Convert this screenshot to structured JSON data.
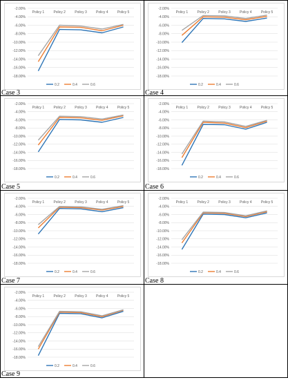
{
  "colors": {
    "series_0": "#2e75b6",
    "series_1": "#ed7d31",
    "series_2": "#a5a5a5",
    "grid": "#d9d9d9",
    "frame": "#d9d9d9",
    "text": "#595959"
  },
  "chart_data": [
    {
      "type": "line",
      "case_label": "Case 3",
      "categories": [
        "Policy 1",
        "Policy 2",
        "Policy 3",
        "Policy 4",
        "Policy 5"
      ],
      "y_ticks": [
        "-2.00%",
        "-4.00%",
        "-6.00%",
        "-8.00%",
        "-10.00%",
        "-12.00%",
        "-14.00%",
        "-16.00%",
        "-18.00%"
      ],
      "ylim": [
        -18,
        -2
      ],
      "x_axis_position": "top",
      "grid": true,
      "legend": "bottom",
      "series": [
        {
          "name": "0.2",
          "values": [
            -16.8,
            -7.0,
            -7.1,
            -7.8,
            -6.4
          ]
        },
        {
          "name": "0.4",
          "values": [
            -14.6,
            -6.4,
            -6.5,
            -7.3,
            -6.0
          ]
        },
        {
          "name": "0.6",
          "values": [
            -13.2,
            -6.0,
            -6.2,
            -6.9,
            -5.8
          ]
        }
      ]
    },
    {
      "type": "line",
      "case_label": "Case 4",
      "categories": [
        "Policy 1",
        "Policy 2",
        "Policy 3",
        "Policy 4",
        "Policy 5"
      ],
      "y_ticks": [
        "-2.00%",
        "-4.00%",
        "-6.00%",
        "-8.00%",
        "-10.00%",
        "-12.00%",
        "-14.00%",
        "-16.00%",
        "-18.00%"
      ],
      "ylim": [
        -18,
        -2
      ],
      "x_axis_position": "top",
      "grid": true,
      "legend": "bottom",
      "series": [
        {
          "name": "0.2",
          "values": [
            -10.1,
            -4.4,
            -4.5,
            -5.1,
            -4.3
          ]
        },
        {
          "name": "0.4",
          "values": [
            -8.4,
            -4.0,
            -4.1,
            -4.7,
            -3.9
          ]
        },
        {
          "name": "0.6",
          "values": [
            -7.2,
            -3.7,
            -3.8,
            -4.4,
            -3.6
          ]
        }
      ]
    },
    {
      "type": "line",
      "case_label": "Case 5",
      "categories": [
        "Policy 1",
        "Policy 2",
        "Policy 3",
        "Policy 4",
        "Policy 5"
      ],
      "y_ticks": [
        "-2.00%",
        "-4.00%",
        "-6.00%",
        "-8.00%",
        "-10.00%",
        "-12.00%",
        "-14.00%",
        "-16.00%",
        "-18.00%"
      ],
      "ylim": [
        -18,
        -2
      ],
      "x_axis_position": "top",
      "grid": true,
      "legend": "bottom",
      "series": [
        {
          "name": "0.2",
          "values": [
            -13.9,
            -5.9,
            -6.0,
            -6.6,
            -5.4
          ]
        },
        {
          "name": "0.4",
          "values": [
            -12.2,
            -5.4,
            -5.5,
            -6.1,
            -5.0
          ]
        },
        {
          "name": "0.6",
          "values": [
            -11.0,
            -5.1,
            -5.2,
            -5.8,
            -4.8
          ]
        }
      ]
    },
    {
      "type": "line",
      "case_label": "Case 6",
      "categories": [
        "Policy 1",
        "Policy 2",
        "Policy 3",
        "Policy 4",
        "Policy 5"
      ],
      "y_ticks": [
        "-2.00%",
        "-4.00%",
        "-6.00%",
        "-8.00%",
        "-10.00%",
        "-12.00%",
        "-14.00%",
        "-16.00%",
        "-18.00%"
      ],
      "ylim": [
        -18,
        -2
      ],
      "x_axis_position": "top",
      "grid": true,
      "legend": "bottom",
      "series": [
        {
          "name": "0.2",
          "values": [
            -17.2,
            -7.1,
            -7.2,
            -8.3,
            -6.6
          ]
        },
        {
          "name": "0.4",
          "values": [
            -15.3,
            -6.6,
            -6.8,
            -7.9,
            -6.3
          ]
        },
        {
          "name": "0.6",
          "values": [
            -14.4,
            -6.3,
            -6.5,
            -7.6,
            -6.1
          ]
        }
      ]
    },
    {
      "type": "line",
      "case_label": "Case 7",
      "categories": [
        "Policy 1",
        "Policy 2",
        "Policy 3",
        "Policy 4",
        "Policy 5"
      ],
      "y_ticks": [
        "-2.00%",
        "-4.00%",
        "-6.00%",
        "-8.00%",
        "-10.00%",
        "-12.00%",
        "-14.00%",
        "-16.00%",
        "-18.00%"
      ],
      "ylim": [
        -18,
        -2
      ],
      "x_axis_position": "top",
      "grid": true,
      "legend": "bottom",
      "series": [
        {
          "name": "0.2",
          "values": [
            -10.8,
            -4.5,
            -4.6,
            -5.3,
            -4.3
          ]
        },
        {
          "name": "0.4",
          "values": [
            -9.3,
            -4.2,
            -4.3,
            -4.9,
            -4.0
          ]
        },
        {
          "name": "0.6",
          "values": [
            -8.5,
            -4.0,
            -4.1,
            -4.7,
            -3.8
          ]
        }
      ]
    },
    {
      "type": "line",
      "case_label": "Case 8",
      "categories": [
        "Policy 1",
        "Policy 2",
        "Policy 3",
        "Policy 4",
        "Policy 5"
      ],
      "y_ticks": [
        "-2.00%",
        "-4.00%",
        "-6.00%",
        "-8.00%",
        "-10.00%",
        "-12.00%",
        "-14.00%",
        "-16.00%",
        "-18.00%"
      ],
      "ylim": [
        -18,
        -2
      ],
      "x_axis_position": "top",
      "grid": true,
      "legend": "bottom",
      "series": [
        {
          "name": "0.2",
          "values": [
            -14.6,
            -5.9,
            -6.0,
            -6.8,
            -5.6
          ]
        },
        {
          "name": "0.4",
          "values": [
            -13.0,
            -5.6,
            -5.7,
            -6.5,
            -5.3
          ]
        },
        {
          "name": "0.6",
          "values": [
            -12.2,
            -5.4,
            -5.5,
            -6.3,
            -5.1
          ]
        }
      ]
    },
    {
      "type": "line",
      "case_label": "Case 9",
      "categories": [
        "Policy 1",
        "Policy 2",
        "Policy 3",
        "Policy 4",
        "Policy 5"
      ],
      "y_ticks": [
        "-2.00%",
        "-4.00%",
        "-6.00%",
        "-8.00%",
        "-10.00%",
        "-12.00%",
        "-14.00%",
        "-16.00%",
        "-18.00%"
      ],
      "ylim": [
        -18,
        -2
      ],
      "x_axis_position": "top",
      "grid": true,
      "legend": "bottom",
      "series": [
        {
          "name": "0.2",
          "values": [
            -17.6,
            -7.2,
            -7.3,
            -8.3,
            -6.7
          ]
        },
        {
          "name": "0.4",
          "values": [
            -16.0,
            -6.9,
            -7.0,
            -8.0,
            -6.4
          ]
        },
        {
          "name": "0.6",
          "values": [
            -15.4,
            -6.7,
            -6.8,
            -7.8,
            -6.3
          ]
        }
      ]
    }
  ]
}
